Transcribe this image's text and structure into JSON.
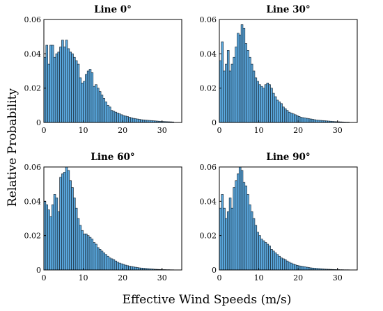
{
  "figure": {
    "ylabel": "Relative Probability",
    "xlabel": "Effective Wind Speeds (m/s)"
  },
  "chart_data": [
    {
      "type": "bar",
      "title": "Line 0°",
      "xlim": [
        0,
        35
      ],
      "ylim": [
        0,
        0.06
      ],
      "xticks": [
        "0",
        "10",
        "20",
        "30"
      ],
      "yticks": [
        "0",
        "0.02",
        "0.04",
        "0.06"
      ],
      "bin_start": 0,
      "bin_width": 0.5,
      "values": [
        0.038,
        0.045,
        0.034,
        0.045,
        0.045,
        0.038,
        0.04,
        0.041,
        0.044,
        0.048,
        0.044,
        0.048,
        0.043,
        0.041,
        0.04,
        0.038,
        0.036,
        0.034,
        0.026,
        0.023,
        0.024,
        0.028,
        0.03,
        0.031,
        0.029,
        0.021,
        0.022,
        0.02,
        0.018,
        0.016,
        0.014,
        0.012,
        0.01,
        0.009,
        0.007,
        0.0065,
        0.006,
        0.0055,
        0.005,
        0.0045,
        0.004,
        0.0037,
        0.0034,
        0.003,
        0.0027,
        0.0024,
        0.0022,
        0.002,
        0.0018,
        0.0016,
        0.0015,
        0.0014,
        0.0013,
        0.0012,
        0.0011,
        0.001,
        0.0009,
        0.0008,
        0.0007,
        0.0006,
        0.00055,
        0.0005,
        0.00045,
        0.0004,
        0.00035,
        0.0003
      ]
    },
    {
      "type": "bar",
      "title": "Line 30°",
      "xlim": [
        0,
        35
      ],
      "ylim": [
        0,
        0.06
      ],
      "xticks": [
        "0",
        "10",
        "20",
        "30"
      ],
      "yticks": [
        "0",
        "0.02",
        "0.04",
        "0.06"
      ],
      "bin_start": 0,
      "bin_width": 0.5,
      "values": [
        0.036,
        0.047,
        0.03,
        0.034,
        0.042,
        0.03,
        0.034,
        0.038,
        0.044,
        0.052,
        0.051,
        0.057,
        0.055,
        0.046,
        0.042,
        0.038,
        0.034,
        0.03,
        0.026,
        0.024,
        0.022,
        0.021,
        0.02,
        0.022,
        0.023,
        0.022,
        0.02,
        0.017,
        0.015,
        0.013,
        0.012,
        0.011,
        0.009,
        0.008,
        0.007,
        0.006,
        0.0055,
        0.005,
        0.0045,
        0.004,
        0.0035,
        0.003,
        0.0028,
        0.0026,
        0.0024,
        0.0022,
        0.002,
        0.0018,
        0.0016,
        0.0014,
        0.0013,
        0.0012,
        0.0011,
        0.001,
        0.0009,
        0.0008,
        0.0007,
        0.0006,
        0.0005,
        0.00045,
        0.0004,
        0.00035,
        0.0003,
        0.00025,
        0.0002,
        0.0002
      ]
    },
    {
      "type": "bar",
      "title": "Line 60°",
      "xlim": [
        0,
        35
      ],
      "ylim": [
        0,
        0.06
      ],
      "xticks": [
        "0",
        "10",
        "20",
        "30"
      ],
      "yticks": [
        "0",
        "0.02",
        "0.04",
        "0.06"
      ],
      "bin_start": 0,
      "bin_width": 0.5,
      "values": [
        0.04,
        0.038,
        0.035,
        0.031,
        0.038,
        0.044,
        0.042,
        0.034,
        0.054,
        0.056,
        0.057,
        0.061,
        0.058,
        0.052,
        0.048,
        0.042,
        0.036,
        0.03,
        0.026,
        0.023,
        0.021,
        0.021,
        0.02,
        0.019,
        0.018,
        0.016,
        0.015,
        0.013,
        0.012,
        0.011,
        0.01,
        0.009,
        0.008,
        0.007,
        0.0065,
        0.006,
        0.0052,
        0.0045,
        0.004,
        0.0036,
        0.0032,
        0.0028,
        0.0025,
        0.0022,
        0.002,
        0.0018,
        0.0016,
        0.0014,
        0.0012,
        0.0011,
        0.001,
        0.0009,
        0.0008,
        0.0007,
        0.0006,
        0.0005,
        0.0004,
        0.00035,
        0.0003,
        0.00025,
        0.0002,
        0.0002,
        0.00015,
        0.00015,
        0.0001,
        0.0001
      ]
    },
    {
      "type": "bar",
      "title": "Line 90°",
      "xlim": [
        0,
        35
      ],
      "ylim": [
        0,
        0.06
      ],
      "xticks": [
        "0",
        "10",
        "20",
        "30"
      ],
      "yticks": [
        "0",
        "0.02",
        "0.04",
        "0.06"
      ],
      "bin_start": 0,
      "bin_width": 0.5,
      "values": [
        0.036,
        0.044,
        0.036,
        0.03,
        0.034,
        0.042,
        0.036,
        0.048,
        0.052,
        0.056,
        0.061,
        0.058,
        0.051,
        0.049,
        0.044,
        0.038,
        0.034,
        0.03,
        0.026,
        0.022,
        0.02,
        0.018,
        0.017,
        0.016,
        0.015,
        0.014,
        0.012,
        0.011,
        0.01,
        0.009,
        0.008,
        0.007,
        0.0065,
        0.006,
        0.0052,
        0.0045,
        0.004,
        0.0035,
        0.003,
        0.0027,
        0.0024,
        0.0022,
        0.002,
        0.0018,
        0.0016,
        0.0014,
        0.0012,
        0.0011,
        0.001,
        0.0009,
        0.0008,
        0.0007,
        0.0006,
        0.0005,
        0.00045,
        0.0004,
        0.00035,
        0.0003,
        0.00025,
        0.0002,
        0.0002,
        0.00015,
        0.00015,
        0.0001,
        0.0001,
        0.0001
      ]
    }
  ]
}
